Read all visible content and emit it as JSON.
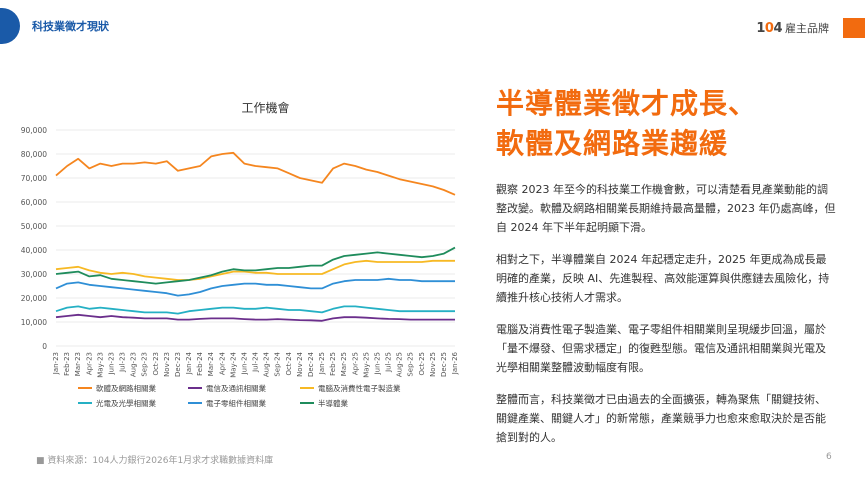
{
  "header": {
    "section_title": "科技業徵才現狀",
    "brand_number_prefix": "1",
    "brand_number_o": "0",
    "brand_number_suffix": "4",
    "brand_text": "雇主品牌"
  },
  "headline": [
    "半導體業徵才成長、",
    "軟體及網路業趨緩"
  ],
  "paragraphs": [
    "觀察 2023 年至今的科技業工作機會數，可以清楚看見產業動能的調整改變。軟體及網路相關業長期維持最高量體，2023 年仍處高峰，但自 2024 年下半年起明顯下滑。",
    "相對之下，半導體業自 2024 年起穩定走升，2025 年更成為成長最明確的產業，反映 AI、先進製程、高效能運算與供應鏈去風險化，持續推升核心技術人才需求。",
    "電腦及消費性電子製造業、電子零組件相關業則呈現緩步回溫，屬於「量不爆發、但需求穩定」的復甦型態。電信及通訊相關業與光電及光學相關業整體波動幅度有限。",
    "整體而言，科技業徵才已由過去的全面擴張，轉為聚焦「關鍵技術、關鍵產業、關鍵人才」的新常態，產業競爭力也愈來愈取決於是否能搶到對的人。"
  ],
  "source": "資料來源：104人力銀行2026年1月求才求職數據資料庫",
  "page_number": "6",
  "chart_data": {
    "type": "line",
    "title": "工作機會",
    "ylim": [
      0,
      90000
    ],
    "yticks": [
      0,
      10000,
      20000,
      30000,
      40000,
      50000,
      60000,
      70000,
      80000,
      90000
    ],
    "ytick_labels": [
      "0",
      "10,000",
      "20,000",
      "30,000",
      "40,000",
      "50,000",
      "60,000",
      "70,000",
      "80,000",
      "90,000"
    ],
    "x_labels": [
      "Jan-23",
      "Feb-23",
      "Mar-23",
      "Apr-23",
      "May-23",
      "Jun-23",
      "Jul-23",
      "Aug-23",
      "Sep-23",
      "Oct-23",
      "Nov-23",
      "Dec-23",
      "Jan-24",
      "Feb-24",
      "Mar-24",
      "Apr-24",
      "May-24",
      "Jun-24",
      "Jul-24",
      "Aug-24",
      "Sep-24",
      "Oct-24",
      "Nov-24",
      "Dec-24",
      "Jan-25",
      "Feb-25",
      "Mar-25",
      "Apr-25",
      "May-25",
      "Jun-25",
      "Jul-25",
      "Aug-25",
      "Sep-25",
      "Oct-25",
      "Nov-25",
      "Dec-25",
      "Jan-26"
    ],
    "legend_position": "bottom",
    "series": [
      {
        "name": "軟體及網路相關業",
        "color": "#f5861f",
        "values": [
          71000,
          75000,
          78000,
          74000,
          76000,
          75000,
          76000,
          76000,
          76500,
          76000,
          77000,
          73000,
          74000,
          75000,
          79000,
          80000,
          80500,
          76000,
          75000,
          74500,
          74000,
          72000,
          70000,
          69000,
          68000,
          74000,
          76000,
          75000,
          73500,
          72500,
          71000,
          69500,
          68500,
          67500,
          66500,
          65000,
          63000
        ]
      },
      {
        "name": "電信及通訊相關業",
        "color": "#6b2f8c",
        "values": [
          12000,
          12500,
          13000,
          12500,
          12000,
          12500,
          12000,
          11800,
          11500,
          11500,
          11500,
          11000,
          11000,
          11300,
          11500,
          11500,
          11500,
          11200,
          11000,
          11000,
          11200,
          11000,
          10800,
          10700,
          10500,
          11500,
          12000,
          12000,
          11800,
          11500,
          11300,
          11200,
          11000,
          11000,
          11000,
          11000,
          11000
        ]
      },
      {
        "name": "電腦及消費性電子製造業",
        "color": "#f7b924",
        "values": [
          32000,
          32500,
          33000,
          31500,
          30500,
          30000,
          30500,
          30000,
          29000,
          28500,
          28000,
          27500,
          27500,
          28000,
          29000,
          30000,
          31000,
          31000,
          30500,
          30500,
          30000,
          30000,
          30000,
          30000,
          30000,
          32000,
          34000,
          35000,
          35500,
          35000,
          35000,
          35000,
          35000,
          35000,
          35500,
          35500,
          35500
        ]
      },
      {
        "name": "光電及光學相關業",
        "color": "#25b0c4",
        "values": [
          14500,
          16000,
          16500,
          15500,
          16000,
          15500,
          15000,
          14500,
          14000,
          14000,
          14000,
          13500,
          14500,
          15000,
          15500,
          16000,
          16000,
          15500,
          15500,
          16000,
          15500,
          15000,
          15000,
          14500,
          14000,
          15500,
          16500,
          16500,
          16000,
          15500,
          15000,
          14500,
          14500,
          14500,
          14500,
          14500,
          14500
        ]
      },
      {
        "name": "電子零組件相關業",
        "color": "#2f8fd6",
        "values": [
          24000,
          26000,
          26500,
          25500,
          25000,
          24500,
          24000,
          23500,
          23000,
          22500,
          22000,
          21000,
          21500,
          22500,
          24000,
          25000,
          25500,
          26000,
          26000,
          25500,
          25500,
          25000,
          24500,
          24000,
          24000,
          26000,
          27000,
          27500,
          27500,
          27500,
          28000,
          27500,
          27500,
          27000,
          27000,
          27000,
          27000
        ]
      },
      {
        "name": "半導體業",
        "color": "#1f8c5c",
        "values": [
          30000,
          30500,
          31000,
          29000,
          29500,
          28000,
          27500,
          27000,
          26500,
          26000,
          26500,
          27000,
          27500,
          28500,
          29500,
          31000,
          32000,
          31500,
          31500,
          32000,
          32500,
          32500,
          33000,
          33500,
          33500,
          36000,
          37500,
          38000,
          38500,
          39000,
          38500,
          38000,
          37500,
          37000,
          37500,
          38500,
          41000
        ]
      }
    ]
  }
}
